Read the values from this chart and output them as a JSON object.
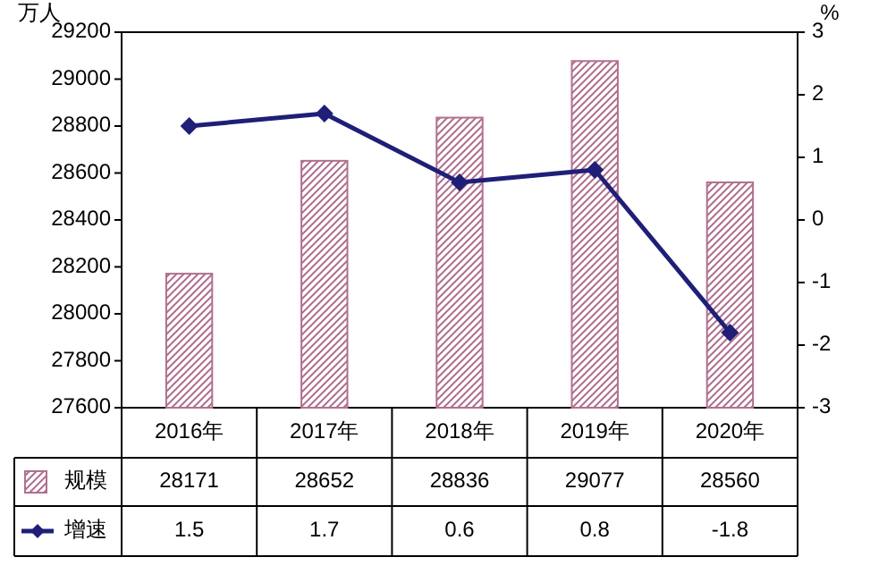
{
  "chart_data": {
    "type": "bar",
    "categories": [
      "2016年",
      "2017年",
      "2018年",
      "2019年",
      "2020年"
    ],
    "ylabel": "万人",
    "y2label": "%",
    "series": [
      {
        "name": "规模",
        "color": "#b0708f",
        "values": [
          28171,
          28652,
          28836,
          29077,
          28560
        ]
      },
      {
        "name": "增速",
        "type": "line",
        "axis": "y2",
        "color": "#1f1f78",
        "marker": "diamond",
        "values": [
          1.5,
          1.7,
          0.6,
          0.8,
          -1.8
        ]
      }
    ],
    "ylim": [
      27600,
      29200
    ],
    "yticks": [
      27600,
      27800,
      28000,
      28200,
      28400,
      28600,
      28800,
      29000,
      29200
    ],
    "y2lim": [
      -3,
      3
    ],
    "y2ticks": [
      -3,
      -2,
      -1,
      0,
      1,
      2,
      3
    ],
    "data_labels": true,
    "legend": "bottom",
    "grid": false
  }
}
